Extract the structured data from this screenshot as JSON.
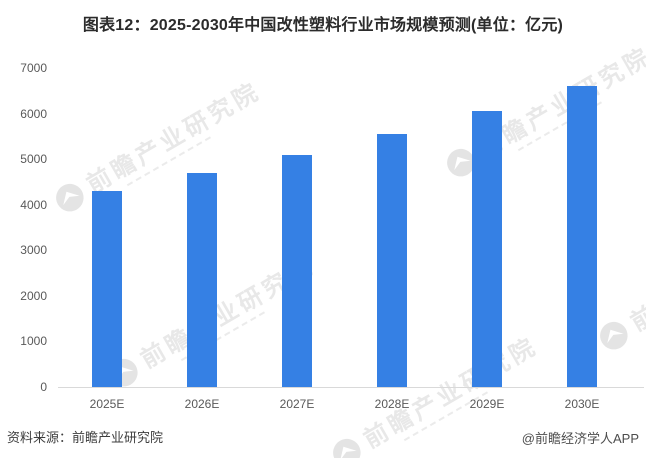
{
  "title": "图表12：2025-2030年中国改性塑料行业市场规模预测(单位：亿元)",
  "watermark": {
    "text": "前瞻产业研究院"
  },
  "footer": {
    "source": "资料来源：前瞻产业研究院",
    "credit": "@前瞻经济学人APP"
  },
  "colors": {
    "bar": "#3580e4",
    "axis_text": "#595959",
    "baseline": "#d9d9d9",
    "title_text": "#2b2b2b"
  },
  "chart_data": {
    "type": "bar",
    "categories": [
      "2025E",
      "2026E",
      "2027E",
      "2028E",
      "2029E",
      "2030E"
    ],
    "values": [
      4300,
      4700,
      5100,
      5550,
      6050,
      6600
    ],
    "title": "图表12：2025-2030年中国改性塑料行业市场规模预测(单位：亿元)",
    "xlabel": "",
    "ylabel": "",
    "ylim": [
      0,
      7000
    ],
    "ytick_step": 1000,
    "grid": false,
    "legend": false,
    "bar_color": "#3580e4"
  }
}
